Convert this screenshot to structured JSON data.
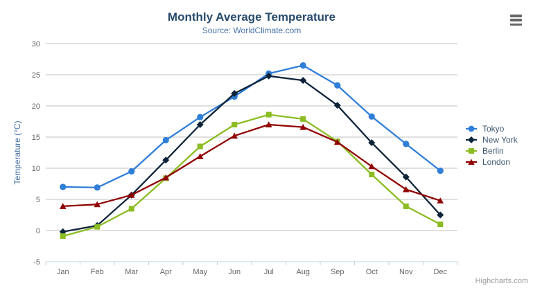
{
  "header": {
    "title": "Monthly Average Temperature",
    "subtitle": "Source: WorldClimate.com"
  },
  "credits": "Highcharts.com",
  "menu_icon": "hamburger-export-menu",
  "colors": {
    "title": "#274b6d",
    "subtitle": "#4572A7",
    "axis_label": "#666666",
    "axis_title": "#4572A7",
    "legend_text": "#3E576F",
    "grid_line": "#C0C0C0",
    "axis_line": "#C0D0E0",
    "credits": "#999999",
    "menu_icon": "#666666",
    "background": "#ffffff"
  },
  "chart_data": {
    "type": "line",
    "title": "Monthly Average Temperature",
    "subtitle": "Source: WorldClimate.com",
    "categories": [
      "Jan",
      "Feb",
      "Mar",
      "Apr",
      "May",
      "Jun",
      "Jul",
      "Aug",
      "Sep",
      "Oct",
      "Nov",
      "Dec"
    ],
    "series": [
      {
        "name": "Tokyo",
        "color": "#2f7ed8",
        "marker": "circle",
        "values": [
          7.0,
          6.9,
          9.5,
          14.5,
          18.2,
          21.5,
          25.2,
          26.5,
          23.3,
          18.3,
          13.9,
          9.6
        ]
      },
      {
        "name": "New York",
        "color": "#0d233a",
        "marker": "diamond",
        "values": [
          -0.2,
          0.8,
          5.7,
          11.3,
          17.0,
          22.0,
          24.8,
          24.1,
          20.1,
          14.1,
          8.6,
          2.5
        ]
      },
      {
        "name": "Berlin",
        "color": "#8bbc21",
        "marker": "square",
        "values": [
          -0.9,
          0.6,
          3.5,
          8.4,
          13.5,
          17.0,
          18.6,
          17.9,
          14.3,
          9.0,
          3.9,
          1.0
        ]
      },
      {
        "name": "London",
        "color": "#910000",
        "marker": "triangle",
        "values": [
          3.9,
          4.2,
          5.7,
          8.5,
          11.9,
          15.2,
          17.0,
          16.6,
          14.2,
          10.3,
          6.6,
          4.8
        ]
      }
    ],
    "xlabel": "",
    "ylabel": "Temperature (°C)",
    "ylim": [
      -5,
      30
    ],
    "ytick_step": 5,
    "grid": "horizontal",
    "legend_position": "right"
  }
}
